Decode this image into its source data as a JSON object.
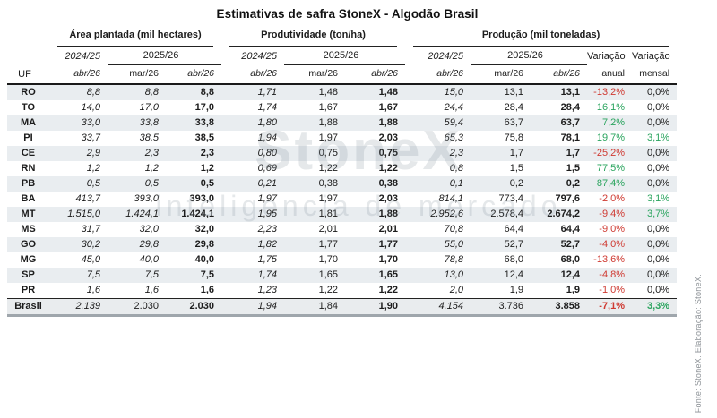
{
  "title": "Estimativas de safra StoneX - Algodão Brasil",
  "source_note": "Fonte: StoneX. Elaboração: StoneX.",
  "watermark": {
    "line1": "StoneX",
    "line2": "inteligencia de mercado"
  },
  "colors": {
    "positive": "#2aa45e",
    "negative": "#cf3a32",
    "alt_row_bg": "#e9edf0",
    "total_row_bg": "#e9ecee",
    "header_line": "#1a1a1a"
  },
  "header": {
    "uf": "UF",
    "groups": [
      {
        "label": "Área plantada (mil hectares)"
      },
      {
        "label": "Produtividade (ton/ha)"
      },
      {
        "label": "Produção (mil toneladas)"
      }
    ],
    "year_prev": "2024/25",
    "year_curr": "2025/26",
    "month_prev": "abr/26",
    "month_mar": "mar/26",
    "month_abr": "abr/26",
    "var_annual": {
      "line1": "Variação",
      "line2": "anual"
    },
    "var_monthly": {
      "line1": "Variação",
      "line2": "mensal"
    }
  },
  "chart_data": {
    "type": "table",
    "title": "Estimativas de safra StoneX - Algodão Brasil",
    "column_groups": [
      "Área plantada (mil hectares)",
      "Produtividade (ton/ha)",
      "Produção (mil toneladas)"
    ],
    "columns": [
      "UF",
      "Área plantada 2024/25 abr/26",
      "Área plantada 2025/26 mar/26",
      "Área plantada 2025/26 abr/26",
      "Produtividade 2024/25 abr/26",
      "Produtividade 2025/26 mar/26",
      "Produtividade 2025/26 abr/26",
      "Produção 2024/25 abr/26",
      "Produção 2025/26 mar/26",
      "Produção 2025/26 abr/26",
      "Variação anual",
      "Variação mensal"
    ],
    "rows": [
      [
        "RO",
        "8,8",
        "8,8",
        "8,8",
        "1,71",
        "1,48",
        "1,48",
        "15,0",
        "13,1",
        "13,1",
        "-13,2%",
        "0,0%"
      ],
      [
        "TO",
        "14,0",
        "17,0",
        "17,0",
        "1,74",
        "1,67",
        "1,67",
        "24,4",
        "28,4",
        "28,4",
        "16,1%",
        "0,0%"
      ],
      [
        "MA",
        "33,0",
        "33,8",
        "33,8",
        "1,80",
        "1,88",
        "1,88",
        "59,4",
        "63,7",
        "63,7",
        "7,2%",
        "0,0%"
      ],
      [
        "PI",
        "33,7",
        "38,5",
        "38,5",
        "1,94",
        "1,97",
        "2,03",
        "65,3",
        "75,8",
        "78,1",
        "19,7%",
        "3,1%"
      ],
      [
        "CE",
        "2,9",
        "2,3",
        "2,3",
        "0,80",
        "0,75",
        "0,75",
        "2,3",
        "1,7",
        "1,7",
        "-25,2%",
        "0,0%"
      ],
      [
        "RN",
        "1,2",
        "1,2",
        "1,2",
        "0,69",
        "1,22",
        "1,22",
        "0,8",
        "1,5",
        "1,5",
        "77,5%",
        "0,0%"
      ],
      [
        "PB",
        "0,5",
        "0,5",
        "0,5",
        "0,21",
        "0,38",
        "0,38",
        "0,1",
        "0,2",
        "0,2",
        "87,4%",
        "0,0%"
      ],
      [
        "BA",
        "413,7",
        "393,0",
        "393,0",
        "1,97",
        "1,97",
        "2,03",
        "814,1",
        "773,4",
        "797,6",
        "-2,0%",
        "3,1%"
      ],
      [
        "MT",
        "1.515,0",
        "1.424,1",
        "1.424,1",
        "1,95",
        "1,81",
        "1,88",
        "2.952,6",
        "2.578,4",
        "2.674,2",
        "-9,4%",
        "3,7%"
      ],
      [
        "MS",
        "31,7",
        "32,0",
        "32,0",
        "2,23",
        "2,01",
        "2,01",
        "70,8",
        "64,4",
        "64,4",
        "-9,0%",
        "0,0%"
      ],
      [
        "GO",
        "30,2",
        "29,8",
        "29,8",
        "1,82",
        "1,77",
        "1,77",
        "55,0",
        "52,7",
        "52,7",
        "-4,0%",
        "0,0%"
      ],
      [
        "MG",
        "45,0",
        "40,0",
        "40,0",
        "1,75",
        "1,70",
        "1,70",
        "78,8",
        "68,0",
        "68,0",
        "-13,6%",
        "0,0%"
      ],
      [
        "SP",
        "7,5",
        "7,5",
        "7,5",
        "1,74",
        "1,65",
        "1,65",
        "13,0",
        "12,4",
        "12,4",
        "-4,8%",
        "0,0%"
      ],
      [
        "PR",
        "1,6",
        "1,6",
        "1,6",
        "1,23",
        "1,22",
        "1,22",
        "2,0",
        "1,9",
        "1,9",
        "-1,0%",
        "0,0%"
      ]
    ],
    "total": [
      "Brasil",
      "2.139",
      "2.030",
      "2.030",
      "1,94",
      "1,84",
      "1,90",
      "4.154",
      "3.736",
      "3.858",
      "-7,1%",
      "3,3%"
    ]
  }
}
